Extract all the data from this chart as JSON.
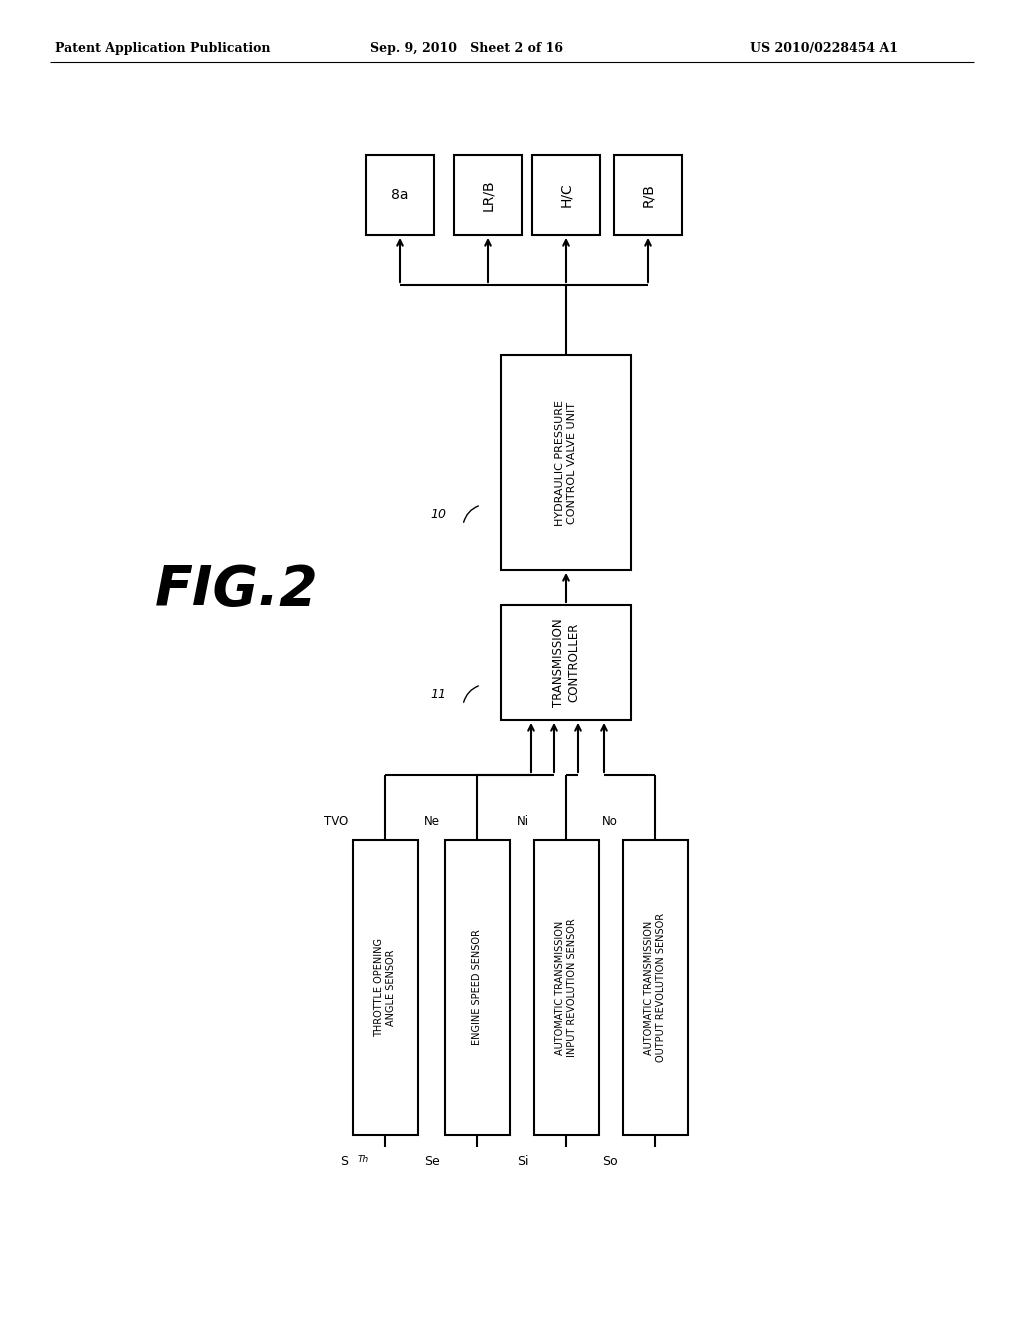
{
  "header_left": "Patent Application Publication",
  "header_mid": "Sep. 9, 2010   Sheet 2 of 16",
  "header_right": "US 2010/0228454 A1",
  "fig_label": "FIG.2",
  "background": "#ffffff",
  "line_color": "#000000",
  "box_color": "#ffffff",
  "sensors": [
    {
      "label": "THROTTLE OPENING\nANGLE SENSOR",
      "signal": "TVO",
      "bottom_label": "S"
    },
    {
      "label": "ENGINE SPEED SENSOR",
      "signal": "Ne",
      "bottom_label": "Se"
    },
    {
      "label": "AUTOMATIC TRANSMISSION\nINPUT REVOLUTION SENSOR",
      "signal": "Ni",
      "bottom_label": "Si"
    },
    {
      "label": "AUTOMATIC TRANSMISSION\nOUTPUT REVOLUTION SENSOR",
      "signal": "No",
      "bottom_label": "So"
    }
  ],
  "tc_label": "TRANSMISSION\nCONTROLLER",
  "tc_number": "11",
  "hpcu_label": "HYDRAULIC PRESSURE\nCONTROL VALVE UNIT",
  "hpcu_number": "10",
  "outputs": [
    "8a",
    "LR/B",
    "H/C",
    "R/B"
  ]
}
